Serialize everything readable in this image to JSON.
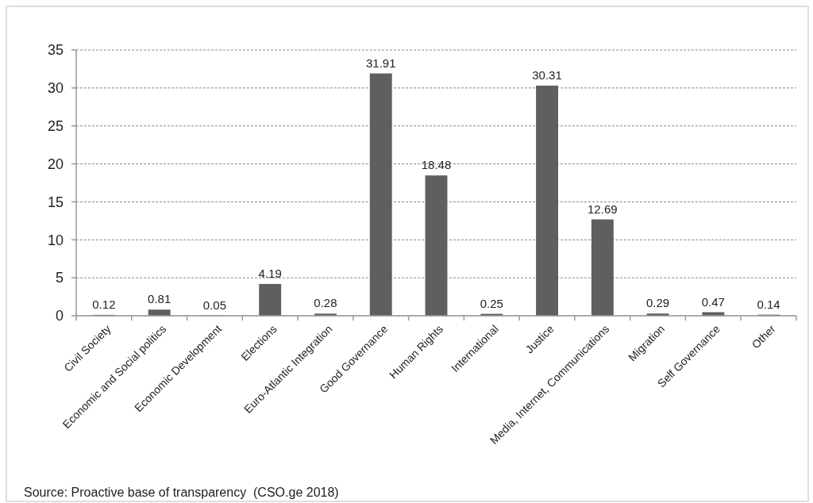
{
  "chart_data": {
    "type": "bar",
    "categories": [
      "Civil Society",
      "Economic and Social politics",
      "Economic Development",
      "Elections",
      "Euro-Atlantic Integration",
      "Good Governance",
      "Human Rights",
      "International",
      "Justice",
      "Media, Internet, Communications",
      "Migration",
      "Self Governance",
      "Other"
    ],
    "values": [
      0.12,
      0.81,
      0.05,
      4.19,
      0.28,
      31.91,
      18.48,
      0.25,
      30.31,
      12.69,
      0.29,
      0.47,
      0.14
    ],
    "color": "#5f5f5f",
    "ylim": [
      0,
      35
    ],
    "yticks": [
      0,
      5,
      10,
      15,
      20,
      25,
      30,
      35
    ],
    "grid": "y",
    "data_labels": true,
    "annotations": [
      "Source: Proactive base of transparency  (CSO.ge 2018)"
    ]
  }
}
